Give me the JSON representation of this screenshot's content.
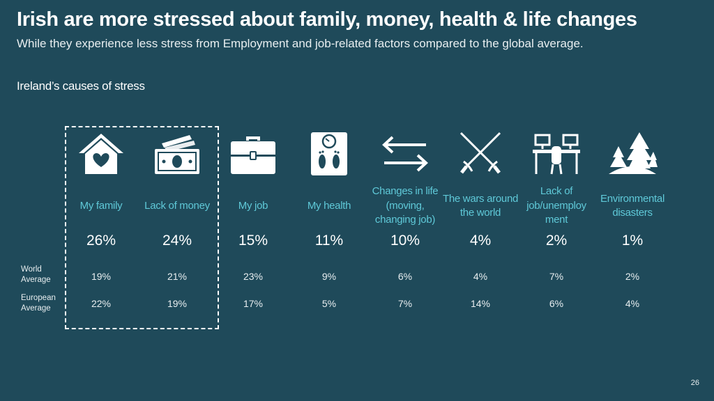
{
  "header": {
    "title": "Irish are more stressed about family, money, health & life changes",
    "subtitle": "While they experience less stress from Employment and job-related factors compared to the global average."
  },
  "section_title": "Ireland’s causes of stress",
  "row_labels": {
    "world": [
      "World",
      "Average"
    ],
    "europe": [
      "European",
      "Average"
    ]
  },
  "columns": [
    {
      "icon": "house-heart-icon",
      "label": "My family",
      "ireland": "26%",
      "world": "19%",
      "europe": "22%"
    },
    {
      "icon": "money-icon",
      "label": "Lack of money",
      "ireland": "24%",
      "world": "21%",
      "europe": "19%"
    },
    {
      "icon": "briefcase-icon",
      "label": "My job",
      "ireland": "15%",
      "world": "23%",
      "europe": "17%"
    },
    {
      "icon": "scale-icon",
      "label": "My health",
      "ireland": "11%",
      "world": "9%",
      "europe": "5%"
    },
    {
      "icon": "exchange-arrows-icon",
      "label": "Changes in life (moving, changing job)",
      "ireland": "10%",
      "world": "6%",
      "europe": "7%"
    },
    {
      "icon": "crossed-swords-icon",
      "label": "The wars around the world",
      "ireland": "4%",
      "world": "4%",
      "europe": "14%"
    },
    {
      "icon": "desks-icon",
      "label": "Lack of job/unemploy ment",
      "ireland": "2%",
      "world": "7%",
      "europe": "6%"
    },
    {
      "icon": "trees-icon",
      "label": "Environmental disasters",
      "ireland": "1%",
      "world": "2%",
      "europe": "4%"
    }
  ],
  "page_number": "26",
  "colors": {
    "background": "#1f4a5a",
    "accent": "#5fc9d8",
    "text": "#ffffff"
  }
}
